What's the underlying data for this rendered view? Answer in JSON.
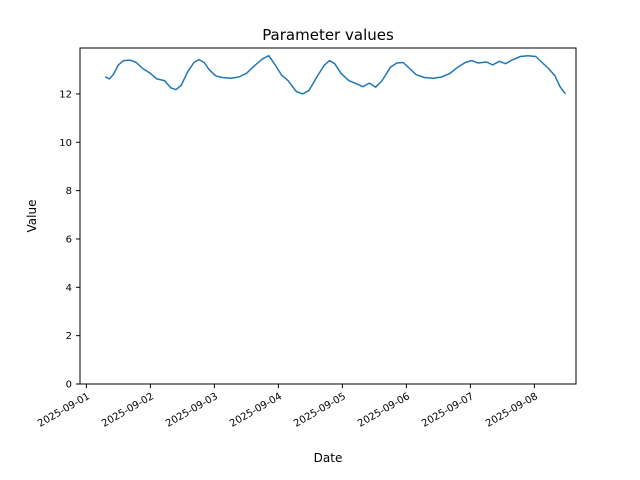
{
  "figure": {
    "background": "#ffffff"
  },
  "chart_data": {
    "type": "line",
    "title": "Parameter values",
    "xlabel": "Date",
    "ylabel": "Value",
    "line_color": "#1f77b4",
    "line_width": 1.5,
    "grid": false,
    "legend": "none",
    "x_tick_labels": [
      "2025-09-01",
      "2025-09-02",
      "2025-09-03",
      "2025-09-04",
      "2025-09-05",
      "2025-09-06",
      "2025-09-07",
      "2025-09-08"
    ],
    "x_tick_positions_days": [
      0,
      1,
      2,
      3,
      4,
      5,
      6,
      7
    ],
    "x_tick_rotation_deg": 30,
    "y_ticks": [
      0,
      2,
      4,
      6,
      8,
      10,
      12
    ],
    "xlim_days": [
      -0.1,
      7.65
    ],
    "ylim": [
      0,
      13.9
    ],
    "x_days_since_2025_09_01": [
      0.3,
      0.36,
      0.42,
      0.5,
      0.58,
      0.68,
      0.78,
      0.88,
      1.0,
      1.1,
      1.22,
      1.32,
      1.4,
      1.48,
      1.58,
      1.68,
      1.76,
      1.84,
      1.92,
      2.02,
      2.12,
      2.25,
      2.38,
      2.5,
      2.62,
      2.75,
      2.85,
      2.95,
      3.05,
      3.15,
      3.28,
      3.38,
      3.48,
      3.6,
      3.72,
      3.8,
      3.88,
      3.98,
      4.1,
      4.22,
      4.32,
      4.42,
      4.52,
      4.62,
      4.75,
      4.85,
      4.95,
      5.05,
      5.15,
      5.28,
      5.42,
      5.55,
      5.68,
      5.8,
      5.92,
      6.02,
      6.12,
      6.25,
      6.35,
      6.45,
      6.55,
      6.65,
      6.78,
      6.9,
      7.02,
      7.12,
      7.22,
      7.32,
      7.4,
      7.48
    ],
    "y_values": [
      12.7,
      12.62,
      12.8,
      13.2,
      13.38,
      13.4,
      13.3,
      13.05,
      12.85,
      12.62,
      12.55,
      12.25,
      12.18,
      12.35,
      12.9,
      13.3,
      13.42,
      13.3,
      13.0,
      12.75,
      12.68,
      12.65,
      12.7,
      12.85,
      13.15,
      13.45,
      13.58,
      13.2,
      12.78,
      12.55,
      12.1,
      12.0,
      12.15,
      12.7,
      13.2,
      13.38,
      13.25,
      12.85,
      12.55,
      12.42,
      12.3,
      12.45,
      12.28,
      12.55,
      13.1,
      13.28,
      13.3,
      13.05,
      12.8,
      12.68,
      12.65,
      12.7,
      12.85,
      13.1,
      13.3,
      13.38,
      13.28,
      13.32,
      13.2,
      13.35,
      13.25,
      13.4,
      13.55,
      13.58,
      13.55,
      13.3,
      13.05,
      12.75,
      12.3,
      12.02
    ]
  }
}
